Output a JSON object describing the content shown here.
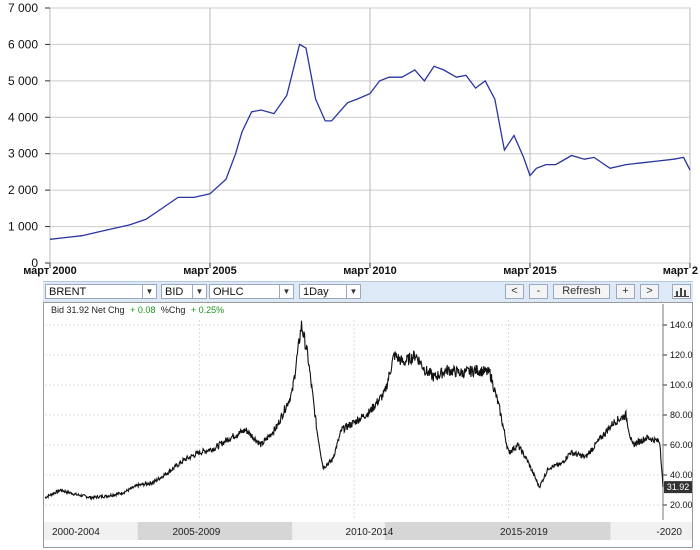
{
  "chart_data": [
    {
      "type": "line",
      "title": "",
      "xlabel": "",
      "ylabel": "",
      "xlim": [
        2000.0,
        2020.0
      ],
      "ylim": [
        0,
        7000
      ],
      "grid": true,
      "x_tick_labels": [
        "март 2000",
        "март 2005",
        "март 2010",
        "март 2015",
        "март 2"
      ],
      "x_tick_values": [
        2000,
        2005,
        2010,
        2015,
        2020
      ],
      "y_tick_labels": [
        "0",
        "1 000",
        "2 000",
        "3 000",
        "4 000",
        "5 000",
        "6 000",
        "7 000"
      ],
      "y_tick_values": [
        0,
        1000,
        2000,
        3000,
        4000,
        5000,
        6000,
        7000
      ],
      "series": [
        {
          "x": [
            2000.0,
            2000.5,
            2001.0,
            2001.5,
            2002.0,
            2002.5,
            2003.0,
            2003.5,
            2004.0,
            2004.5,
            2005.0,
            2005.5,
            2005.8,
            2006.0,
            2006.3,
            2006.6,
            2007.0,
            2007.4,
            2007.8,
            2008.0,
            2008.3,
            2008.6,
            2008.8,
            2009.0,
            2009.3,
            2009.6,
            2010.0,
            2010.3,
            2010.6,
            2011.0,
            2011.4,
            2011.7,
            2012.0,
            2012.3,
            2012.7,
            2013.0,
            2013.3,
            2013.6,
            2013.9,
            2014.2,
            2014.5,
            2014.8,
            2015.0,
            2015.2,
            2015.5,
            2015.8,
            2016.0,
            2016.3,
            2016.7,
            2017.0,
            2017.5,
            2018.0,
            2018.5,
            2019.0,
            2019.5,
            2019.8,
            2020.0
          ],
          "y": [
            650,
            700,
            750,
            850,
            950,
            1050,
            1200,
            1500,
            1800,
            1800,
            1900,
            2300,
            3000,
            3600,
            4150,
            4200,
            4100,
            4600,
            6000,
            5900,
            4500,
            3900,
            3900,
            4100,
            4400,
            4500,
            4650,
            5000,
            5100,
            5100,
            5300,
            5000,
            5400,
            5300,
            5100,
            5150,
            4800,
            5000,
            4500,
            3100,
            3500,
            2900,
            2400,
            2600,
            2700,
            2700,
            2800,
            2950,
            2850,
            2900,
            2600,
            2700,
            2750,
            2800,
            2850,
            2900,
            2550
          ]
        }
      ]
    },
    {
      "type": "line",
      "title": "",
      "xlabel": "",
      "ylabel": "",
      "xlim": [
        2000.0,
        2020.0
      ],
      "ylim": [
        10,
        150
      ],
      "grid": true,
      "y_tick_labels": [
        "20.00",
        "40.00",
        "60.00",
        "80.00",
        "100.00",
        "120.00",
        "140.00"
      ],
      "y_tick_values": [
        20,
        40,
        60,
        80,
        100,
        120,
        140
      ],
      "period_labels": [
        "2000-2004",
        "2005-2009",
        "2010-2014",
        "2015-2019",
        "-2020"
      ],
      "current_value_label": "31.92",
      "series": [
        {
          "x": [
            2000.0,
            2000.5,
            2001.0,
            2001.5,
            2002.0,
            2002.5,
            2003.0,
            2003.5,
            2004.0,
            2004.5,
            2005.0,
            2005.5,
            2006.0,
            2006.5,
            2007.0,
            2007.5,
            2008.0,
            2008.3,
            2008.5,
            2008.8,
            2009.0,
            2009.3,
            2009.6,
            2010.0,
            2010.5,
            2011.0,
            2011.3,
            2011.6,
            2012.0,
            2012.3,
            2012.6,
            2013.0,
            2013.5,
            2014.0,
            2014.4,
            2014.7,
            2015.0,
            2015.3,
            2015.6,
            2016.0,
            2016.3,
            2016.7,
            2017.0,
            2017.5,
            2018.0,
            2018.4,
            2018.8,
            2019.0,
            2019.5,
            2019.9,
            2020.0
          ],
          "y": [
            25,
            30,
            27,
            25,
            26,
            28,
            33,
            35,
            42,
            50,
            55,
            58,
            65,
            70,
            60,
            72,
            95,
            140,
            120,
            70,
            45,
            50,
            70,
            75,
            82,
            95,
            120,
            115,
            120,
            110,
            105,
            110,
            108,
            110,
            108,
            85,
            55,
            60,
            50,
            32,
            45,
            47,
            55,
            52,
            65,
            75,
            80,
            60,
            65,
            62,
            31.92
          ]
        }
      ]
    }
  ],
  "bid_info": {
    "prefix": "Bid 31.92 Net Chg",
    "net_chg": "+ 0.08",
    "pct_label": "%Chg",
    "pct_chg": "+ 0.25%"
  },
  "toolbar": {
    "symbol": "BRENT",
    "field": "BID",
    "style": "OHLC",
    "interval": "1Day",
    "prev_label": "<",
    "zoom_out_label": "-",
    "refresh_label": "Refresh",
    "zoom_in_label": "+",
    "next_label": ">"
  },
  "colors": {
    "top_line": "#2a35a0",
    "bottom_line": "#111111",
    "grid": "#cccccc",
    "toolbar_bg": "#dde9f7",
    "net_chg_positive": "#1a9a1a"
  }
}
